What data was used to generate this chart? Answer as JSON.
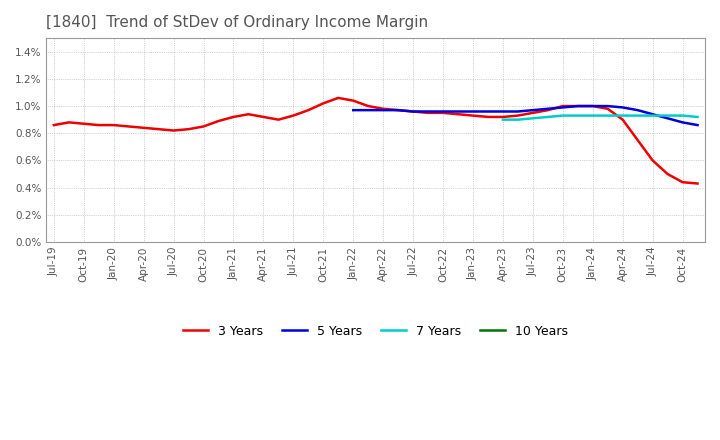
{
  "title": "[1840]  Trend of StDev of Ordinary Income Margin",
  "title_color": "#555555",
  "background_color": "#ffffff",
  "plot_background_color": "#ffffff",
  "grid_color": "#aaaaaa",
  "ylim": [
    0.0,
    0.015
  ],
  "yticks": [
    0.0,
    0.002,
    0.004,
    0.006,
    0.008,
    0.01,
    0.012,
    0.014
  ],
  "series": {
    "3yr": {
      "color": "#ee0000",
      "linewidth": 1.8,
      "label": "3 Years",
      "values": [
        0.0086,
        0.0088,
        0.0087,
        0.0086,
        0.0086,
        0.0085,
        0.0084,
        0.0083,
        0.0082,
        0.0083,
        0.0085,
        0.0089,
        0.0092,
        0.0094,
        0.0092,
        0.009,
        0.0093,
        0.0097,
        0.0102,
        0.0106,
        0.0104,
        0.01,
        0.0098,
        0.0097,
        0.0096,
        0.0095,
        0.0095,
        0.0094,
        0.0093,
        0.0092,
        0.0092,
        0.0093,
        0.0095,
        0.0097,
        0.01,
        0.01,
        0.01,
        0.0098,
        0.009,
        0.0075,
        0.006,
        0.005,
        0.0044,
        0.0043
      ]
    },
    "5yr": {
      "color": "#0000dd",
      "linewidth": 1.8,
      "label": "5 Years",
      "values": [
        null,
        null,
        null,
        null,
        null,
        null,
        null,
        null,
        null,
        null,
        null,
        null,
        null,
        null,
        null,
        null,
        null,
        null,
        null,
        null,
        0.0097,
        0.0097,
        0.0097,
        0.0097,
        0.0096,
        0.0096,
        0.0096,
        0.0096,
        0.0096,
        0.0096,
        0.0096,
        0.0096,
        0.0097,
        0.0098,
        0.0099,
        0.01,
        0.01,
        0.01,
        0.0099,
        0.0097,
        0.0094,
        0.0091,
        0.0088,
        0.0086
      ]
    },
    "7yr": {
      "color": "#00cccc",
      "linewidth": 1.8,
      "label": "7 Years",
      "values": [
        null,
        null,
        null,
        null,
        null,
        null,
        null,
        null,
        null,
        null,
        null,
        null,
        null,
        null,
        null,
        null,
        null,
        null,
        null,
        null,
        null,
        null,
        null,
        null,
        null,
        null,
        null,
        null,
        null,
        null,
        0.009,
        0.009,
        0.0091,
        0.0092,
        0.0093,
        0.0093,
        0.0093,
        0.0093,
        0.0093,
        0.0093,
        0.0093,
        0.0093,
        0.0093,
        0.0092
      ]
    },
    "10yr": {
      "color": "#007700",
      "linewidth": 1.8,
      "label": "10 Years",
      "values": [
        null,
        null,
        null,
        null,
        null,
        null,
        null,
        null,
        null,
        null,
        null,
        null,
        null,
        null,
        null,
        null,
        null,
        null,
        null,
        null,
        null,
        null,
        null,
        null,
        null,
        null,
        null,
        null,
        null,
        null,
        null,
        null,
        null,
        null,
        null,
        null,
        null,
        null,
        null,
        null,
        null,
        null,
        null,
        null
      ]
    }
  },
  "x_labels": [
    "Jul-19",
    "Oct-19",
    "Jan-20",
    "Apr-20",
    "Jul-20",
    "Oct-20",
    "Jan-21",
    "Apr-21",
    "Jul-21",
    "Oct-21",
    "Jan-22",
    "Apr-22",
    "Jul-22",
    "Oct-22",
    "Jan-23",
    "Apr-23",
    "Jul-23",
    "Oct-23",
    "Jan-24",
    "Apr-24",
    "Jul-24",
    "Oct-24"
  ]
}
